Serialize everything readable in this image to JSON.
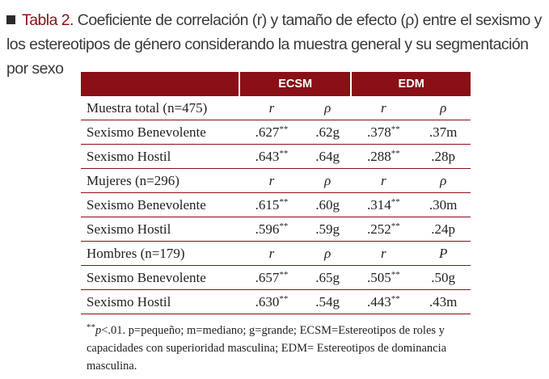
{
  "caption": {
    "label": "Tabla 2.",
    "text": "Coeficiente de correlación (r) y tamaño de efecto (ρ) entre el sexismo y los estereotipos de género considerando la muestra general y su segmentación por sexo"
  },
  "table": {
    "groups": [
      "ECSM",
      "EDM"
    ],
    "sections": [
      {
        "header": "Muestra total (n=475)",
        "symbols": [
          "r",
          "ρ",
          "r",
          "ρ"
        ],
        "rows": [
          {
            "label": "Sexismo Benevolente",
            "ecsm_r": ".627",
            "ecsm_r_sig": "**",
            "ecsm_p": ".62g",
            "edm_r": ".378",
            "edm_r_sig": "**",
            "edm_p": ".37m"
          },
          {
            "label": "Sexismo Hostil",
            "ecsm_r": ".643",
            "ecsm_r_sig": "**",
            "ecsm_p": ".64g",
            "edm_r": ".288",
            "edm_r_sig": "**",
            "edm_p": ".28p"
          }
        ]
      },
      {
        "header": "Mujeres (n=296)",
        "symbols": [
          "r",
          "ρ",
          "r",
          "ρ"
        ],
        "rows": [
          {
            "label": "Sexismo Benevolente",
            "ecsm_r": ".615",
            "ecsm_r_sig": "**",
            "ecsm_p": ".60g",
            "edm_r": ".314",
            "edm_r_sig": "**",
            "edm_p": ".30m"
          },
          {
            "label": "Sexismo Hostil",
            "ecsm_r": ".596",
            "ecsm_r_sig": "**",
            "ecsm_p": ".59g",
            "edm_r": ".252",
            "edm_r_sig": "**",
            "edm_p": ".24p"
          }
        ]
      },
      {
        "header": "Hombres (n=179)",
        "symbols": [
          "r",
          "ρ",
          "r",
          "P"
        ],
        "rows": [
          {
            "label": "Sexismo Benevolente",
            "ecsm_r": ".657",
            "ecsm_r_sig": "**",
            "ecsm_p": ".65g",
            "edm_r": ".505",
            "edm_r_sig": "**",
            "edm_p": ".50g"
          },
          {
            "label": "Sexismo Hostil",
            "ecsm_r": ".630",
            "ecsm_r_sig": "**",
            "ecsm_p": ".54g",
            "edm_r": ".443",
            "edm_r_sig": "**",
            "edm_p": ".43m"
          }
        ]
      }
    ]
  },
  "note": {
    "asterisks": "**",
    "p": "p",
    "rest": "<.01. p=pequeño; m=mediano; g=grande; ECSM=Estereotipos de roles y capacidades con superioridad masculina; EDM= Estereotipos de dominancia masculina."
  }
}
